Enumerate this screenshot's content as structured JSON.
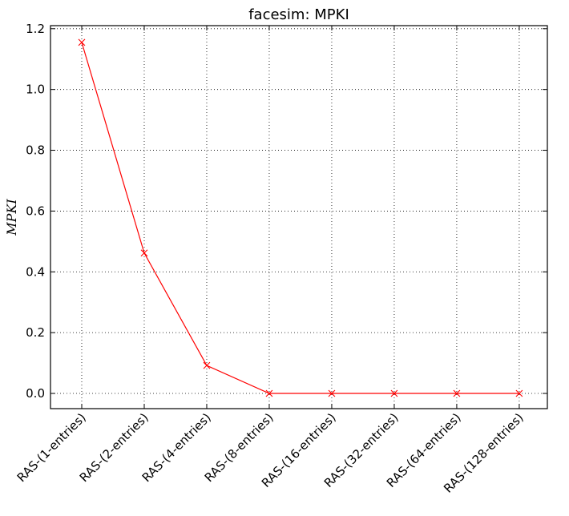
{
  "chart_data": {
    "type": "line",
    "title": "facesim: MPKI",
    "xlabel": "",
    "ylabel": "MPKI",
    "categories": [
      "RAS-(1-entries)",
      "RAS-(2-entries)",
      "RAS-(4-entries)",
      "RAS-(8-entries)",
      "RAS-(16-entries)",
      "RAS-(32-entries)",
      "RAS-(64-entries)",
      "RAS-(128-entries)"
    ],
    "series": [
      {
        "values": [
          1.155,
          0.462,
          0.092,
          0.0,
          0.0,
          0.0,
          0.0,
          0.0
        ],
        "color": "#ff0000",
        "marker": "x"
      }
    ],
    "ylim": [
      -0.05,
      1.21
    ],
    "yticks": [
      0.0,
      0.2,
      0.4,
      0.6,
      0.8,
      1.0,
      1.2
    ],
    "ytick_labels": [
      "0.0",
      "0.2",
      "0.4",
      "0.6",
      "0.8",
      "1.0",
      "1.2"
    ],
    "grid": true,
    "legend": "none"
  }
}
